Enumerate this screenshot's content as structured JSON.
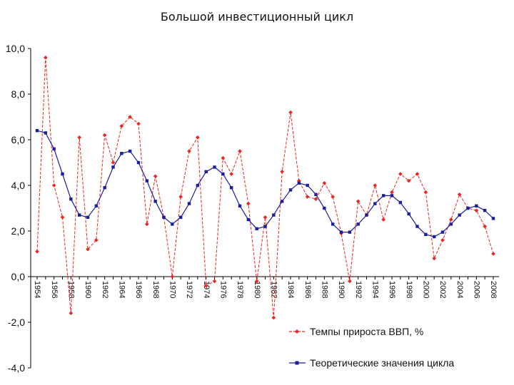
{
  "chart_data": {
    "type": "line",
    "title": "Большой инвестиционный цикл",
    "xlabel": "",
    "ylabel": "",
    "ylim": [
      -4.0,
      10.0
    ],
    "yticks": [
      "10,0",
      "8,0",
      "6,0",
      "4,0",
      "2,0",
      "0,0",
      "-2,0",
      "-4,0"
    ],
    "ytick_values": [
      10,
      8,
      6,
      4,
      2,
      0,
      -2,
      -4
    ],
    "xticks": [
      "1954",
      "1956",
      "1958",
      "1960",
      "1962",
      "1964",
      "1966",
      "1968",
      "1970",
      "1972",
      "1974",
      "1976",
      "1978",
      "1980",
      "1982",
      "1984",
      "1986",
      "1988",
      "1990",
      "1992",
      "1994",
      "1996",
      "1998",
      "2000",
      "2002",
      "2004",
      "2006",
      "2008"
    ],
    "x": [
      1954,
      1955,
      1956,
      1957,
      1958,
      1959,
      1960,
      1961,
      1962,
      1963,
      1964,
      1965,
      1966,
      1967,
      1968,
      1969,
      1970,
      1971,
      1972,
      1973,
      1974,
      1975,
      1976,
      1977,
      1978,
      1979,
      1980,
      1981,
      1982,
      1983,
      1984,
      1985,
      1986,
      1987,
      1988,
      1989,
      1990,
      1991,
      1992,
      1993,
      1994,
      1995,
      1996,
      1997,
      1998,
      1999,
      2000,
      2001,
      2002,
      2003,
      2004,
      2005,
      2006,
      2007,
      2008
    ],
    "series": [
      {
        "name": "Темпы  прироста ВВП, %",
        "color": "#e8261f",
        "marker": "diamond",
        "dash": "dashed",
        "values": [
          1.1,
          9.6,
          4.0,
          2.6,
          -1.6,
          6.1,
          1.2,
          1.6,
          6.2,
          5.0,
          6.6,
          7.0,
          6.7,
          2.3,
          4.4,
          2.6,
          0.0,
          3.5,
          5.5,
          6.1,
          -0.4,
          -0.2,
          5.2,
          4.5,
          5.5,
          3.2,
          -0.2,
          2.6,
          -1.8,
          4.6,
          7.2,
          4.2,
          3.5,
          3.4,
          4.1,
          3.5,
          1.9,
          -0.2,
          3.3,
          2.7,
          4.0,
          2.5,
          3.7,
          4.5,
          4.2,
          4.5,
          3.7,
          0.8,
          1.6,
          2.5,
          3.6,
          3.0,
          2.9,
          2.2,
          1.0
        ]
      },
      {
        "name": "Теоретические значения  цикла",
        "color": "#1a1f9c",
        "marker": "square",
        "dash": "solid",
        "values": [
          6.4,
          6.3,
          5.6,
          4.5,
          3.4,
          2.7,
          2.6,
          3.1,
          3.9,
          4.8,
          5.4,
          5.5,
          5.0,
          4.2,
          3.3,
          2.6,
          2.3,
          2.6,
          3.2,
          4.0,
          4.6,
          4.8,
          4.5,
          3.9,
          3.1,
          2.5,
          2.1,
          2.2,
          2.7,
          3.3,
          3.8,
          4.1,
          4.0,
          3.6,
          3.0,
          2.3,
          1.95,
          1.95,
          2.3,
          2.7,
          3.2,
          3.55,
          3.55,
          3.25,
          2.75,
          2.2,
          1.85,
          1.75,
          1.95,
          2.3,
          2.7,
          3.0,
          3.1,
          2.9,
          2.55
        ]
      }
    ],
    "legend": "bottom-right"
  }
}
